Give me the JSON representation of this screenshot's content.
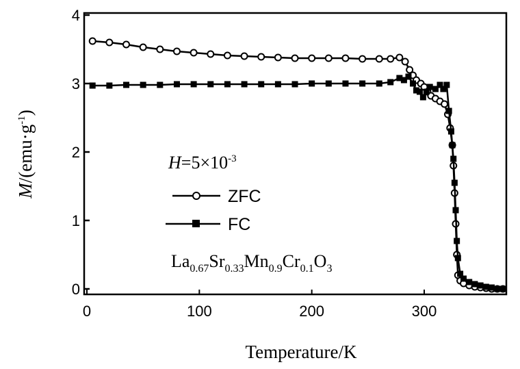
{
  "chart_data": {
    "type": "line",
    "title": "",
    "xlabel": "Temperature/K",
    "ylabel_main": "M",
    "ylabel_rest": "/(emu·g",
    "ylabel_sup": "-1",
    "ylabel_close": ")",
    "xlim": [
      0,
      375
    ],
    "ylim": [
      -0.1,
      4
    ],
    "x_ticks": [
      0,
      100,
      200,
      300
    ],
    "x_tick_labels": [
      "0",
      "100",
      "200",
      "300"
    ],
    "y_ticks": [
      0,
      1,
      2,
      3,
      4
    ],
    "y_tick_labels": [
      "0",
      "1",
      "2",
      "3",
      "4"
    ],
    "grid": false,
    "legend_position": "center-left",
    "series": [
      {
        "name": "ZFC",
        "marker": "open-circle",
        "color": "#000000",
        "x": [
          5,
          20,
          35,
          50,
          65,
          80,
          95,
          110,
          125,
          140,
          155,
          170,
          185,
          200,
          215,
          230,
          245,
          260,
          270,
          278,
          283,
          287,
          290,
          293,
          297,
          300,
          303,
          306,
          310,
          314,
          318,
          321,
          323,
          325,
          326,
          327,
          328,
          329,
          330,
          332,
          335,
          340,
          345,
          350,
          355,
          360,
          365,
          370
        ],
        "y": [
          3.62,
          3.6,
          3.57,
          3.53,
          3.5,
          3.47,
          3.45,
          3.43,
          3.41,
          3.4,
          3.39,
          3.38,
          3.37,
          3.37,
          3.37,
          3.37,
          3.36,
          3.36,
          3.36,
          3.38,
          3.32,
          3.2,
          3.12,
          3.05,
          3.0,
          2.95,
          2.88,
          2.82,
          2.78,
          2.74,
          2.7,
          2.55,
          2.35,
          2.1,
          1.8,
          1.4,
          0.95,
          0.5,
          0.2,
          0.12,
          0.08,
          0.05,
          0.03,
          0.02,
          0.01,
          0.0,
          0.0,
          0.0
        ]
      },
      {
        "name": "FC",
        "marker": "filled-square",
        "color": "#000000",
        "x": [
          5,
          20,
          35,
          50,
          65,
          80,
          95,
          110,
          125,
          140,
          155,
          170,
          185,
          200,
          215,
          230,
          245,
          260,
          270,
          278,
          282,
          286,
          290,
          293,
          296,
          299,
          302,
          305,
          310,
          314,
          317,
          320,
          322,
          324,
          325,
          326,
          327,
          328,
          329,
          330,
          332,
          335,
          340,
          345,
          350,
          355,
          360,
          365,
          370
        ],
        "y": [
          2.97,
          2.97,
          2.98,
          2.98,
          2.98,
          2.99,
          2.99,
          2.99,
          2.99,
          2.99,
          2.99,
          2.99,
          2.99,
          3.0,
          3.0,
          3.0,
          3.0,
          3.0,
          3.02,
          3.08,
          3.05,
          3.1,
          3.0,
          2.9,
          2.88,
          2.8,
          2.88,
          2.95,
          2.92,
          2.98,
          2.92,
          2.98,
          2.6,
          2.3,
          2.1,
          1.9,
          1.55,
          1.15,
          0.7,
          0.45,
          0.22,
          0.15,
          0.1,
          0.07,
          0.05,
          0.03,
          0.02,
          0.0,
          0.0
        ]
      }
    ],
    "annotations": {
      "field_H": "H",
      "field_rest": "=5×10",
      "field_sup": "-3",
      "compound": [
        {
          "t": "La",
          "sub": false
        },
        {
          "t": "0.67",
          "sub": true
        },
        {
          "t": "Sr",
          "sub": false
        },
        {
          "t": "0.33",
          "sub": true
        },
        {
          "t": "Mn",
          "sub": false
        },
        {
          "t": "0.9",
          "sub": true
        },
        {
          "t": "Cr",
          "sub": false
        },
        {
          "t": "0.1",
          "sub": true
        },
        {
          "t": "O",
          "sub": false
        },
        {
          "t": "3",
          "sub": true
        }
      ]
    }
  }
}
